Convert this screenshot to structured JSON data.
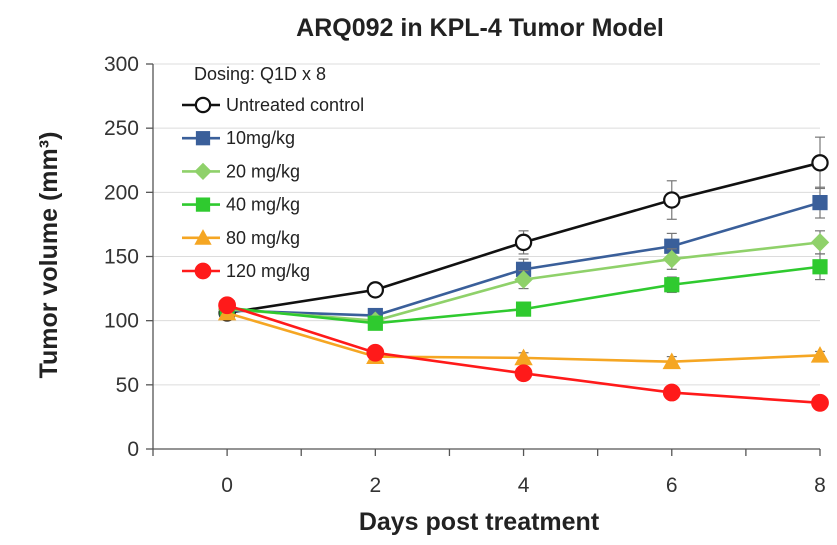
{
  "chart_data": {
    "type": "line",
    "title": "ARQ092 in KPL-4 Tumor Model",
    "xlabel": "Days post treatment",
    "ylabel": "Tumor volume (mm³)",
    "x": [
      0,
      2,
      4,
      6,
      8
    ],
    "xlim": [
      -1,
      8
    ],
    "ylim": [
      0,
      300
    ],
    "xticks": [
      0,
      2,
      4,
      6,
      8
    ],
    "yticks": [
      0,
      50,
      100,
      150,
      200,
      250,
      300
    ],
    "grid": true,
    "legend_position": "top-left",
    "legend_title": "Dosing: Q1D x 8",
    "series": [
      {
        "name": "Untreated control",
        "color": "#111111",
        "marker": "open-circle",
        "values": [
          106,
          124,
          161,
          194,
          223
        ],
        "errors": [
          4,
          5,
          9,
          15,
          20
        ]
      },
      {
        "name": "10mg/kg",
        "color": "#3a5f9a",
        "marker": "square",
        "values": [
          108,
          104,
          140,
          158,
          192
        ],
        "errors": [
          4,
          4,
          8,
          10,
          12
        ]
      },
      {
        "name": "20 mg/kg",
        "color": "#8fd16a",
        "marker": "diamond",
        "values": [
          109,
          100,
          132,
          148,
          161
        ],
        "errors": [
          4,
          4,
          7,
          8,
          9
        ]
      },
      {
        "name": "40 mg/kg",
        "color": "#2fca2f",
        "marker": "square",
        "values": [
          110,
          98,
          109,
          128,
          142
        ],
        "errors": [
          4,
          4,
          5,
          6,
          10
        ]
      },
      {
        "name": "80 mg/kg",
        "color": "#f5a623",
        "marker": "triangle",
        "values": [
          106,
          72,
          71,
          68,
          73
        ],
        "errors": [
          4,
          4,
          4,
          4,
          3
        ]
      },
      {
        "name": "120 mg/kg",
        "color": "#ff1a1a",
        "marker": "circle",
        "values": [
          112,
          75,
          59,
          44,
          36
        ],
        "errors": [
          4,
          3,
          3,
          3,
          3
        ]
      }
    ]
  }
}
